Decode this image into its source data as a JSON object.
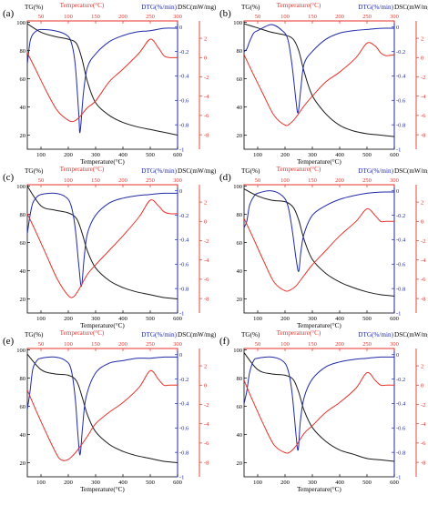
{
  "colors": {
    "tg": "#1a1a1a",
    "dtg": "#1f2aa8",
    "dsc": "#e8322a"
  },
  "axis_text": {
    "tg": "TG(%)",
    "temp_top": "Temperature(°C)",
    "dtg": "DTG(%/min)",
    "dsc": "DSC(mW/mg)",
    "temp_bottom": "Temperature(°C)"
  },
  "chart_data": [
    {
      "type": "line",
      "panel_label": "(a)",
      "bottom_x": {
        "ticks": [
          100,
          200,
          300,
          400,
          500,
          600
        ],
        "range": [
          50,
          600
        ]
      },
      "top_x": {
        "ticks": [
          50,
          100,
          150,
          200,
          250,
          300
        ],
        "range": [
          25,
          300
        ]
      },
      "tg_axis": {
        "ticks": [
          20,
          40,
          60,
          80,
          100
        ],
        "range": [
          10,
          101
        ]
      },
      "dtg_axis": {
        "ticks": [
          0.0,
          -0.2,
          -0.4,
          -0.6,
          -0.8,
          -1.0
        ],
        "range": [
          -1.0,
          0.05
        ]
      },
      "dsc_axis": {
        "ticks": [
          2,
          0,
          -2,
          -4,
          -6,
          -8
        ],
        "range": [
          -9.5,
          3.8
        ]
      },
      "series": [
        {
          "name": "TG",
          "axis": "tg",
          "x": [
            50,
            100,
            150,
            200,
            230,
            250,
            270,
            300,
            350,
            400,
            450,
            500,
            550,
            600
          ],
          "y": [
            99,
            93,
            90,
            88,
            85,
            74,
            58,
            43,
            34,
            29,
            26,
            24,
            22,
            20
          ]
        },
        {
          "name": "DTG",
          "axis": "dtg",
          "x": [
            50,
            60,
            70,
            85,
            100,
            150,
            190,
            210,
            225,
            238,
            243,
            255,
            270,
            300,
            350,
            400,
            450,
            500,
            550,
            600
          ],
          "y": [
            -0.3,
            -0.12,
            -0.06,
            -0.03,
            -0.02,
            -0.03,
            -0.06,
            -0.12,
            -0.3,
            -0.7,
            -0.86,
            -0.55,
            -0.33,
            -0.22,
            -0.12,
            -0.07,
            -0.04,
            -0.03,
            -0.01,
            -0.01
          ]
        },
        {
          "name": "DSC",
          "axis": "dsc",
          "x": [
            25,
            40,
            60,
            80,
            100,
            110,
            120,
            135,
            150,
            175,
            200,
            230,
            250,
            265,
            275,
            285,
            300
          ],
          "y": [
            0.5,
            -1.2,
            -3.5,
            -5.5,
            -6.5,
            -6.6,
            -6.2,
            -5.2,
            -4.5,
            -2.5,
            -1.2,
            0.5,
            1.9,
            1.0,
            0.2,
            0.0,
            0.0
          ]
        }
      ]
    },
    {
      "type": "line",
      "panel_label": "(b)",
      "bottom_x": {
        "ticks": [
          100,
          200,
          300,
          400,
          500,
          600
        ],
        "range": [
          50,
          600
        ]
      },
      "top_x": {
        "ticks": [
          50,
          100,
          150,
          200,
          250,
          300
        ],
        "range": [
          25,
          300
        ]
      },
      "tg_axis": {
        "ticks": [
          20,
          40,
          60,
          80,
          100
        ],
        "range": [
          10,
          101
        ]
      },
      "dtg_axis": {
        "ticks": [
          0.0,
          -0.2,
          -0.4,
          -0.6,
          -0.8,
          -1.0
        ],
        "range": [
          -1.0,
          0.05
        ]
      },
      "dsc_axis": {
        "ticks": [
          2,
          0,
          -2,
          -4,
          -6,
          -8
        ],
        "range": [
          -9.5,
          3.8
        ]
      },
      "series": [
        {
          "name": "TG",
          "axis": "tg",
          "x": [
            50,
            100,
            150,
            200,
            230,
            250,
            270,
            300,
            350,
            400,
            450,
            500,
            550,
            600
          ],
          "y": [
            99,
            96,
            93,
            91,
            88,
            80,
            65,
            48,
            35,
            27,
            23,
            21,
            20,
            19
          ]
        },
        {
          "name": "DTG",
          "axis": "dtg",
          "x": [
            50,
            60,
            70,
            85,
            100,
            150,
            190,
            210,
            225,
            240,
            248,
            258,
            270,
            300,
            350,
            400,
            450,
            500,
            550,
            600
          ],
          "y": [
            -0.2,
            -0.18,
            -0.12,
            -0.05,
            -0.03,
            0.02,
            -0.03,
            -0.1,
            -0.3,
            -0.6,
            -0.7,
            -0.5,
            -0.3,
            -0.2,
            -0.1,
            -0.05,
            -0.03,
            -0.02,
            -0.01,
            -0.01
          ]
        },
        {
          "name": "DSC",
          "axis": "dsc",
          "x": [
            25,
            40,
            60,
            80,
            100,
            110,
            120,
            135,
            150,
            175,
            200,
            230,
            250,
            265,
            275,
            285,
            300
          ],
          "y": [
            0.3,
            -1.5,
            -3.8,
            -6.0,
            -7.0,
            -6.8,
            -6.2,
            -5.0,
            -4.0,
            -2.5,
            -1.5,
            0.0,
            1.5,
            1.2,
            0.5,
            0.2,
            0.3
          ]
        }
      ]
    },
    {
      "type": "line",
      "panel_label": "(c)",
      "bottom_x": {
        "ticks": [
          100,
          200,
          300,
          400,
          500,
          600
        ],
        "range": [
          50,
          600
        ]
      },
      "top_x": {
        "ticks": [
          50,
          100,
          150,
          200,
          250,
          300
        ],
        "range": [
          25,
          300
        ]
      },
      "tg_axis": {
        "ticks": [
          20,
          40,
          60,
          80,
          100
        ],
        "range": [
          10,
          101
        ]
      },
      "dtg_axis": {
        "ticks": [
          0.0,
          -0.2,
          -0.4,
          -0.6,
          -0.8,
          -1.0
        ],
        "range": [
          -1.0,
          0.05
        ]
      },
      "dsc_axis": {
        "ticks": [
          2,
          0,
          -2,
          -4,
          -6,
          -8
        ],
        "range": [
          -9.5,
          3.8
        ]
      },
      "series": [
        {
          "name": "TG",
          "axis": "tg",
          "x": [
            50,
            100,
            150,
            200,
            230,
            250,
            270,
            300,
            350,
            400,
            450,
            500,
            550,
            600
          ],
          "y": [
            100,
            86,
            83,
            81,
            77,
            67,
            54,
            42,
            33,
            28,
            25,
            23,
            21,
            20
          ]
        },
        {
          "name": "DTG",
          "axis": "dtg",
          "x": [
            50,
            60,
            70,
            85,
            100,
            150,
            190,
            210,
            225,
            238,
            248,
            258,
            270,
            300,
            350,
            400,
            450,
            500,
            550,
            600
          ],
          "y": [
            -0.35,
            -0.2,
            -0.1,
            -0.05,
            -0.03,
            -0.02,
            -0.05,
            -0.12,
            -0.3,
            -0.6,
            -0.78,
            -0.55,
            -0.35,
            -0.2,
            -0.1,
            -0.06,
            -0.04,
            -0.03,
            -0.02,
            -0.02
          ]
        },
        {
          "name": "DSC",
          "axis": "dsc",
          "x": [
            25,
            40,
            60,
            80,
            100,
            110,
            120,
            135,
            150,
            175,
            200,
            230,
            250,
            265,
            275,
            285,
            300
          ],
          "y": [
            0.8,
            -1.0,
            -3.5,
            -6.0,
            -7.7,
            -7.8,
            -7.0,
            -5.5,
            -4.5,
            -3.0,
            -1.5,
            0.5,
            2.2,
            1.6,
            1.0,
            0.8,
            0.8
          ]
        }
      ]
    },
    {
      "type": "line",
      "panel_label": "(d)",
      "bottom_x": {
        "ticks": [
          100,
          200,
          300,
          400,
          500,
          600
        ],
        "range": [
          50,
          600
        ]
      },
      "top_x": {
        "ticks": [
          50,
          100,
          150,
          200,
          250,
          300
        ],
        "range": [
          25,
          300
        ]
      },
      "tg_axis": {
        "ticks": [
          20,
          40,
          60,
          80,
          100
        ],
        "range": [
          10,
          101
        ]
      },
      "dtg_axis": {
        "ticks": [
          0.0,
          -0.2,
          -0.4,
          -0.6,
          -0.8,
          -1.0
        ],
        "range": [
          -1.0,
          0.05
        ]
      },
      "dsc_axis": {
        "ticks": [
          2,
          0,
          -2,
          -4,
          -6,
          -8
        ],
        "range": [
          -9.5,
          3.8
        ]
      },
      "series": [
        {
          "name": "TG",
          "axis": "tg",
          "x": [
            50,
            100,
            150,
            200,
            230,
            250,
            270,
            300,
            350,
            400,
            450,
            500,
            550,
            600
          ],
          "y": [
            98,
            93,
            90,
            89,
            85,
            76,
            62,
            48,
            38,
            32,
            28,
            25,
            23,
            22
          ]
        },
        {
          "name": "DTG",
          "axis": "dtg",
          "x": [
            50,
            60,
            70,
            85,
            100,
            150,
            190,
            210,
            225,
            240,
            250,
            258,
            270,
            300,
            350,
            400,
            450,
            500,
            550,
            600
          ],
          "y": [
            -0.3,
            -0.25,
            -0.12,
            -0.05,
            -0.02,
            0.0,
            -0.04,
            -0.12,
            -0.3,
            -0.55,
            -0.66,
            -0.5,
            -0.35,
            -0.2,
            -0.12,
            -0.07,
            -0.04,
            -0.02,
            -0.01,
            -0.01
          ]
        },
        {
          "name": "DSC",
          "axis": "dsc",
          "x": [
            25,
            40,
            60,
            80,
            100,
            110,
            120,
            135,
            150,
            175,
            200,
            230,
            250,
            265,
            275,
            285,
            300
          ],
          "y": [
            0.3,
            -1.5,
            -4.0,
            -6.3,
            -7.2,
            -7.1,
            -6.7,
            -5.6,
            -4.5,
            -3.0,
            -1.5,
            0.0,
            1.3,
            0.6,
            0.0,
            0.0,
            0.0
          ]
        }
      ]
    },
    {
      "type": "line",
      "panel_label": "(e)",
      "bottom_x": {
        "ticks": [
          100,
          200,
          300,
          400,
          500,
          600
        ],
        "range": [
          50,
          600
        ]
      },
      "top_x": {
        "ticks": [
          50,
          100,
          150,
          200,
          250,
          300
        ],
        "range": [
          25,
          300
        ]
      },
      "tg_axis": {
        "ticks": [
          20,
          40,
          60,
          80,
          100
        ],
        "range": [
          10,
          101
        ]
      },
      "dtg_axis": {
        "ticks": [
          0.0,
          -0.2,
          -0.4,
          -0.6,
          -0.8,
          -1.0
        ],
        "range": [
          -1.0,
          0.05
        ]
      },
      "dsc_axis": {
        "ticks": [
          2,
          0,
          -2,
          -4,
          -6,
          -8
        ],
        "range": [
          -9.5,
          3.8
        ]
      },
      "series": [
        {
          "name": "TG",
          "axis": "tg",
          "x": [
            50,
            100,
            150,
            200,
            230,
            250,
            270,
            300,
            350,
            400,
            450,
            500,
            550,
            600
          ],
          "y": [
            97,
            86,
            83,
            82,
            78,
            67,
            54,
            42,
            33,
            28,
            25,
            23,
            21,
            20
          ]
        },
        {
          "name": "DTG",
          "axis": "dtg",
          "x": [
            50,
            60,
            70,
            85,
            100,
            150,
            190,
            210,
            225,
            235,
            243,
            252,
            265,
            300,
            350,
            400,
            450,
            500,
            550,
            600
          ],
          "y": [
            -0.45,
            -0.3,
            -0.12,
            -0.05,
            -0.03,
            -0.02,
            -0.05,
            -0.12,
            -0.35,
            -0.65,
            -0.82,
            -0.6,
            -0.35,
            -0.15,
            -0.07,
            -0.05,
            -0.03,
            -0.03,
            -0.02,
            -0.02
          ]
        },
        {
          "name": "DSC",
          "axis": "dsc",
          "x": [
            25,
            40,
            60,
            80,
            90,
            100,
            110,
            120,
            135,
            150,
            175,
            200,
            230,
            250,
            265,
            275,
            285,
            300
          ],
          "y": [
            -0.5,
            -2.5,
            -5.0,
            -7.3,
            -7.8,
            -7.7,
            -7.2,
            -6.5,
            -5.3,
            -4.0,
            -2.8,
            -1.8,
            -0.2,
            1.5,
            0.6,
            0.0,
            0.0,
            0.0
          ]
        }
      ]
    },
    {
      "type": "line",
      "panel_label": "(f)",
      "bottom_x": {
        "ticks": [
          100,
          200,
          300,
          400,
          500,
          600
        ],
        "range": [
          50,
          600
        ]
      },
      "top_x": {
        "ticks": [
          50,
          100,
          150,
          200,
          250,
          300
        ],
        "range": [
          25,
          300
        ]
      },
      "tg_axis": {
        "ticks": [
          20,
          40,
          60,
          80,
          100
        ],
        "range": [
          10,
          101
        ]
      },
      "dtg_axis": {
        "ticks": [
          0.0,
          -0.2,
          -0.4,
          -0.6,
          -0.8,
          -1.0
        ],
        "range": [
          -1.0,
          0.05
        ]
      },
      "dsc_axis": {
        "ticks": [
          2,
          0,
          -2,
          -4,
          -6,
          -8
        ],
        "range": [
          -9.5,
          3.8
        ]
      },
      "series": [
        {
          "name": "TG",
          "axis": "tg",
          "x": [
            50,
            100,
            150,
            200,
            230,
            250,
            270,
            300,
            350,
            400,
            450,
            500,
            550,
            600
          ],
          "y": [
            98,
            86,
            83,
            82,
            79,
            70,
            57,
            45,
            35,
            29,
            26,
            23,
            22,
            21
          ]
        },
        {
          "name": "DTG",
          "axis": "dtg",
          "x": [
            50,
            60,
            70,
            85,
            100,
            150,
            190,
            210,
            225,
            240,
            248,
            256,
            270,
            300,
            350,
            400,
            450,
            500,
            550,
            600
          ],
          "y": [
            -0.4,
            -0.3,
            -0.15,
            -0.05,
            -0.03,
            -0.02,
            -0.05,
            -0.12,
            -0.3,
            -0.65,
            -0.78,
            -0.55,
            -0.35,
            -0.2,
            -0.1,
            -0.06,
            -0.04,
            -0.03,
            -0.02,
            -0.02
          ]
        },
        {
          "name": "DSC",
          "axis": "dsc",
          "x": [
            25,
            40,
            60,
            80,
            100,
            110,
            120,
            135,
            150,
            175,
            200,
            230,
            250,
            265,
            275,
            285,
            300
          ],
          "y": [
            0.5,
            -1.5,
            -4.0,
            -6.2,
            -7.0,
            -6.9,
            -6.3,
            -5.0,
            -4.2,
            -2.8,
            -1.8,
            -0.3,
            1.3,
            0.5,
            0.0,
            0.0,
            0.0
          ]
        }
      ]
    }
  ]
}
